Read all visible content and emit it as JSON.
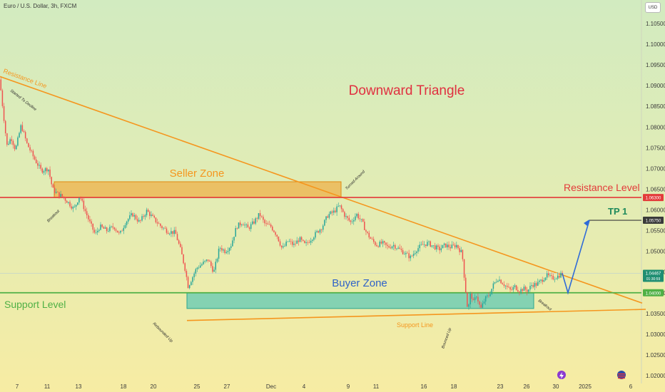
{
  "header": {
    "symbol": "Euro / U.S. Dollar, 3h, FXCM",
    "currency_button": "USD"
  },
  "chart_data": {
    "type": "candlestick",
    "title": "Downward Triangle",
    "yaxis": {
      "ticks": [
        "1.10500",
        "1.10000",
        "1.09500",
        "1.09000",
        "1.08500",
        "1.08000",
        "1.07500",
        "1.07000",
        "1.06500",
        "1.06000",
        "1.05500",
        "1.05000",
        "1.04500",
        "1.04000",
        "1.03500",
        "1.03000",
        "1.02500",
        "1.02000"
      ],
      "range": [
        1.0185,
        1.109
      ]
    },
    "xaxis": {
      "ticks": [
        "7",
        "11",
        "13",
        "18",
        "20",
        "25",
        "27",
        "Dec",
        "4",
        "9",
        "11",
        "16",
        "18",
        "23",
        "26",
        "30",
        "2025",
        "6"
      ]
    },
    "series_path": [
      [
        0,
        1.0915
      ],
      [
        3,
        1.0865
      ],
      [
        10,
        1.0755
      ],
      [
        16,
        1.0775
      ],
      [
        22,
        1.0745
      ],
      [
        30,
        1.0805
      ],
      [
        38,
        1.076
      ],
      [
        48,
        1.0725
      ],
      [
        58,
        1.0695
      ],
      [
        68,
        1.07
      ],
      [
        74,
        1.065
      ],
      [
        80,
        1.064
      ],
      [
        88,
        1.0632
      ],
      [
        96,
        1.0618
      ],
      [
        104,
        1.0602
      ],
      [
        112,
        1.0635
      ],
      [
        118,
        1.0605
      ],
      [
        126,
        1.057
      ],
      [
        134,
        1.054
      ],
      [
        140,
        1.056
      ],
      [
        150,
        1.055
      ],
      [
        160,
        1.056
      ],
      [
        168,
        1.054
      ],
      [
        176,
        1.057
      ],
      [
        186,
        1.059
      ],
      [
        196,
        1.057
      ],
      [
        206,
        1.0598
      ],
      [
        216,
        1.0578
      ],
      [
        226,
        1.056
      ],
      [
        236,
        1.0548
      ],
      [
        246,
        1.0545
      ],
      [
        254,
        1.05
      ],
      [
        260,
        1.0455
      ],
      [
        264,
        1.0415
      ],
      [
        268,
        1.043
      ],
      [
        276,
        1.046
      ],
      [
        284,
        1.047
      ],
      [
        292,
        1.048
      ],
      [
        300,
        1.045
      ],
      [
        308,
        1.051
      ],
      [
        316,
        1.05
      ],
      [
        324,
        1.0515
      ],
      [
        332,
        1.056
      ],
      [
        340,
        1.057
      ],
      [
        348,
        1.0555
      ],
      [
        356,
        1.057
      ],
      [
        364,
        1.059
      ],
      [
        372,
        1.0565
      ],
      [
        380,
        1.056
      ],
      [
        388,
        1.054
      ],
      [
        396,
        1.0505
      ],
      [
        404,
        1.0525
      ],
      [
        412,
        1.0515
      ],
      [
        420,
        1.053
      ],
      [
        428,
        1.0515
      ],
      [
        436,
        1.053
      ],
      [
        444,
        1.0545
      ],
      [
        452,
        1.056
      ],
      [
        460,
        1.0588
      ],
      [
        468,
        1.0595
      ],
      [
        476,
        1.061
      ],
      [
        484,
        1.0585
      ],
      [
        492,
        1.057
      ],
      [
        500,
        1.059
      ],
      [
        508,
        1.057
      ],
      [
        514,
        1.0545
      ],
      [
        520,
        1.053
      ],
      [
        528,
        1.0515
      ],
      [
        536,
        1.052
      ],
      [
        544,
        1.051
      ],
      [
        552,
        1.0515
      ],
      [
        560,
        1.0505
      ],
      [
        568,
        1.0495
      ],
      [
        576,
        1.0485
      ],
      [
        584,
        1.0505
      ],
      [
        592,
        1.0515
      ],
      [
        600,
        1.052
      ],
      [
        608,
        1.0512
      ],
      [
        616,
        1.0505
      ],
      [
        624,
        1.0515
      ],
      [
        632,
        1.051
      ],
      [
        640,
        1.0515
      ],
      [
        648,
        1.0495
      ],
      [
        652,
        1.042
      ],
      [
        656,
        1.0355
      ],
      [
        660,
        1.04
      ],
      [
        664,
        1.0375
      ],
      [
        668,
        1.0395
      ],
      [
        674,
        1.036
      ],
      [
        680,
        1.0385
      ],
      [
        686,
        1.0395
      ],
      [
        692,
        1.042
      ],
      [
        698,
        1.0435
      ],
      [
        704,
        1.0425
      ],
      [
        710,
        1.0415
      ],
      [
        716,
        1.0405
      ],
      [
        722,
        1.0415
      ],
      [
        728,
        1.0405
      ],
      [
        734,
        1.041
      ],
      [
        740,
        1.0405
      ],
      [
        746,
        1.042
      ],
      [
        752,
        1.042
      ],
      [
        758,
        1.0428
      ],
      [
        766,
        1.0442
      ],
      [
        774,
        1.0435
      ],
      [
        782,
        1.044
      ],
      [
        788,
        1.0447
      ]
    ],
    "projection": [
      [
        788,
        1.0447
      ],
      [
        796,
        1.04
      ],
      [
        826,
        1.0575
      ]
    ],
    "resistance_line": {
      "label": "Resistance Line",
      "from": [
        0,
        1.0922
      ],
      "to": [
        900,
        1.0375
      ]
    },
    "support_line": {
      "label": "Support Line",
      "from": [
        262,
        1.0333
      ],
      "to": [
        905,
        1.036
      ]
    },
    "resistance_level": {
      "label": "Resistance Level",
      "price": 1.063,
      "tag": "1.06300"
    },
    "support_level": {
      "label": "Support Level",
      "price": 1.04,
      "tag": "1.04000"
    },
    "tp1": {
      "label": "TP 1",
      "price": 1.0575,
      "tag": "1.05750"
    },
    "last_price": {
      "price": 1.0447,
      "tag": "1.04467",
      "countdown": "01:30:59"
    },
    "seller_zone": {
      "label": "Seller Zone",
      "x": [
        76,
        478
      ],
      "y": [
        1.063,
        1.0668
      ]
    },
    "buyer_zone": {
      "label": "Buyer Zone",
      "x": [
        262,
        748
      ],
      "y": [
        1.0362,
        1.04
      ]
    },
    "annotations": [
      {
        "text": "Started To Decline",
        "x": 14,
        "y": 1.0887
      },
      {
        "text": "Turned Around",
        "x": 486,
        "y": 1.0648
      },
      {
        "text": "Breakout",
        "x": 68,
        "y": 1.057
      },
      {
        "text": "Rebounded Up",
        "x": 214,
        "y": 1.0325
      },
      {
        "text": "Bounced Up",
        "x": 622,
        "y": 1.0265
      },
      {
        "text": "Breakout",
        "x": 754,
        "y": 1.038
      }
    ],
    "colors": {
      "bull": "#26a69a",
      "bear": "#ef5350",
      "resistance_line": "#f5961e",
      "resistance_level": "#e33a3a",
      "support_level": "#4fb045",
      "tp1": "#1e8a5c",
      "projection": "#2f6bd8",
      "title": "#e03040",
      "zone_label_seller": "#f5961e",
      "zone_label_buyer": "#2f62c8"
    }
  }
}
